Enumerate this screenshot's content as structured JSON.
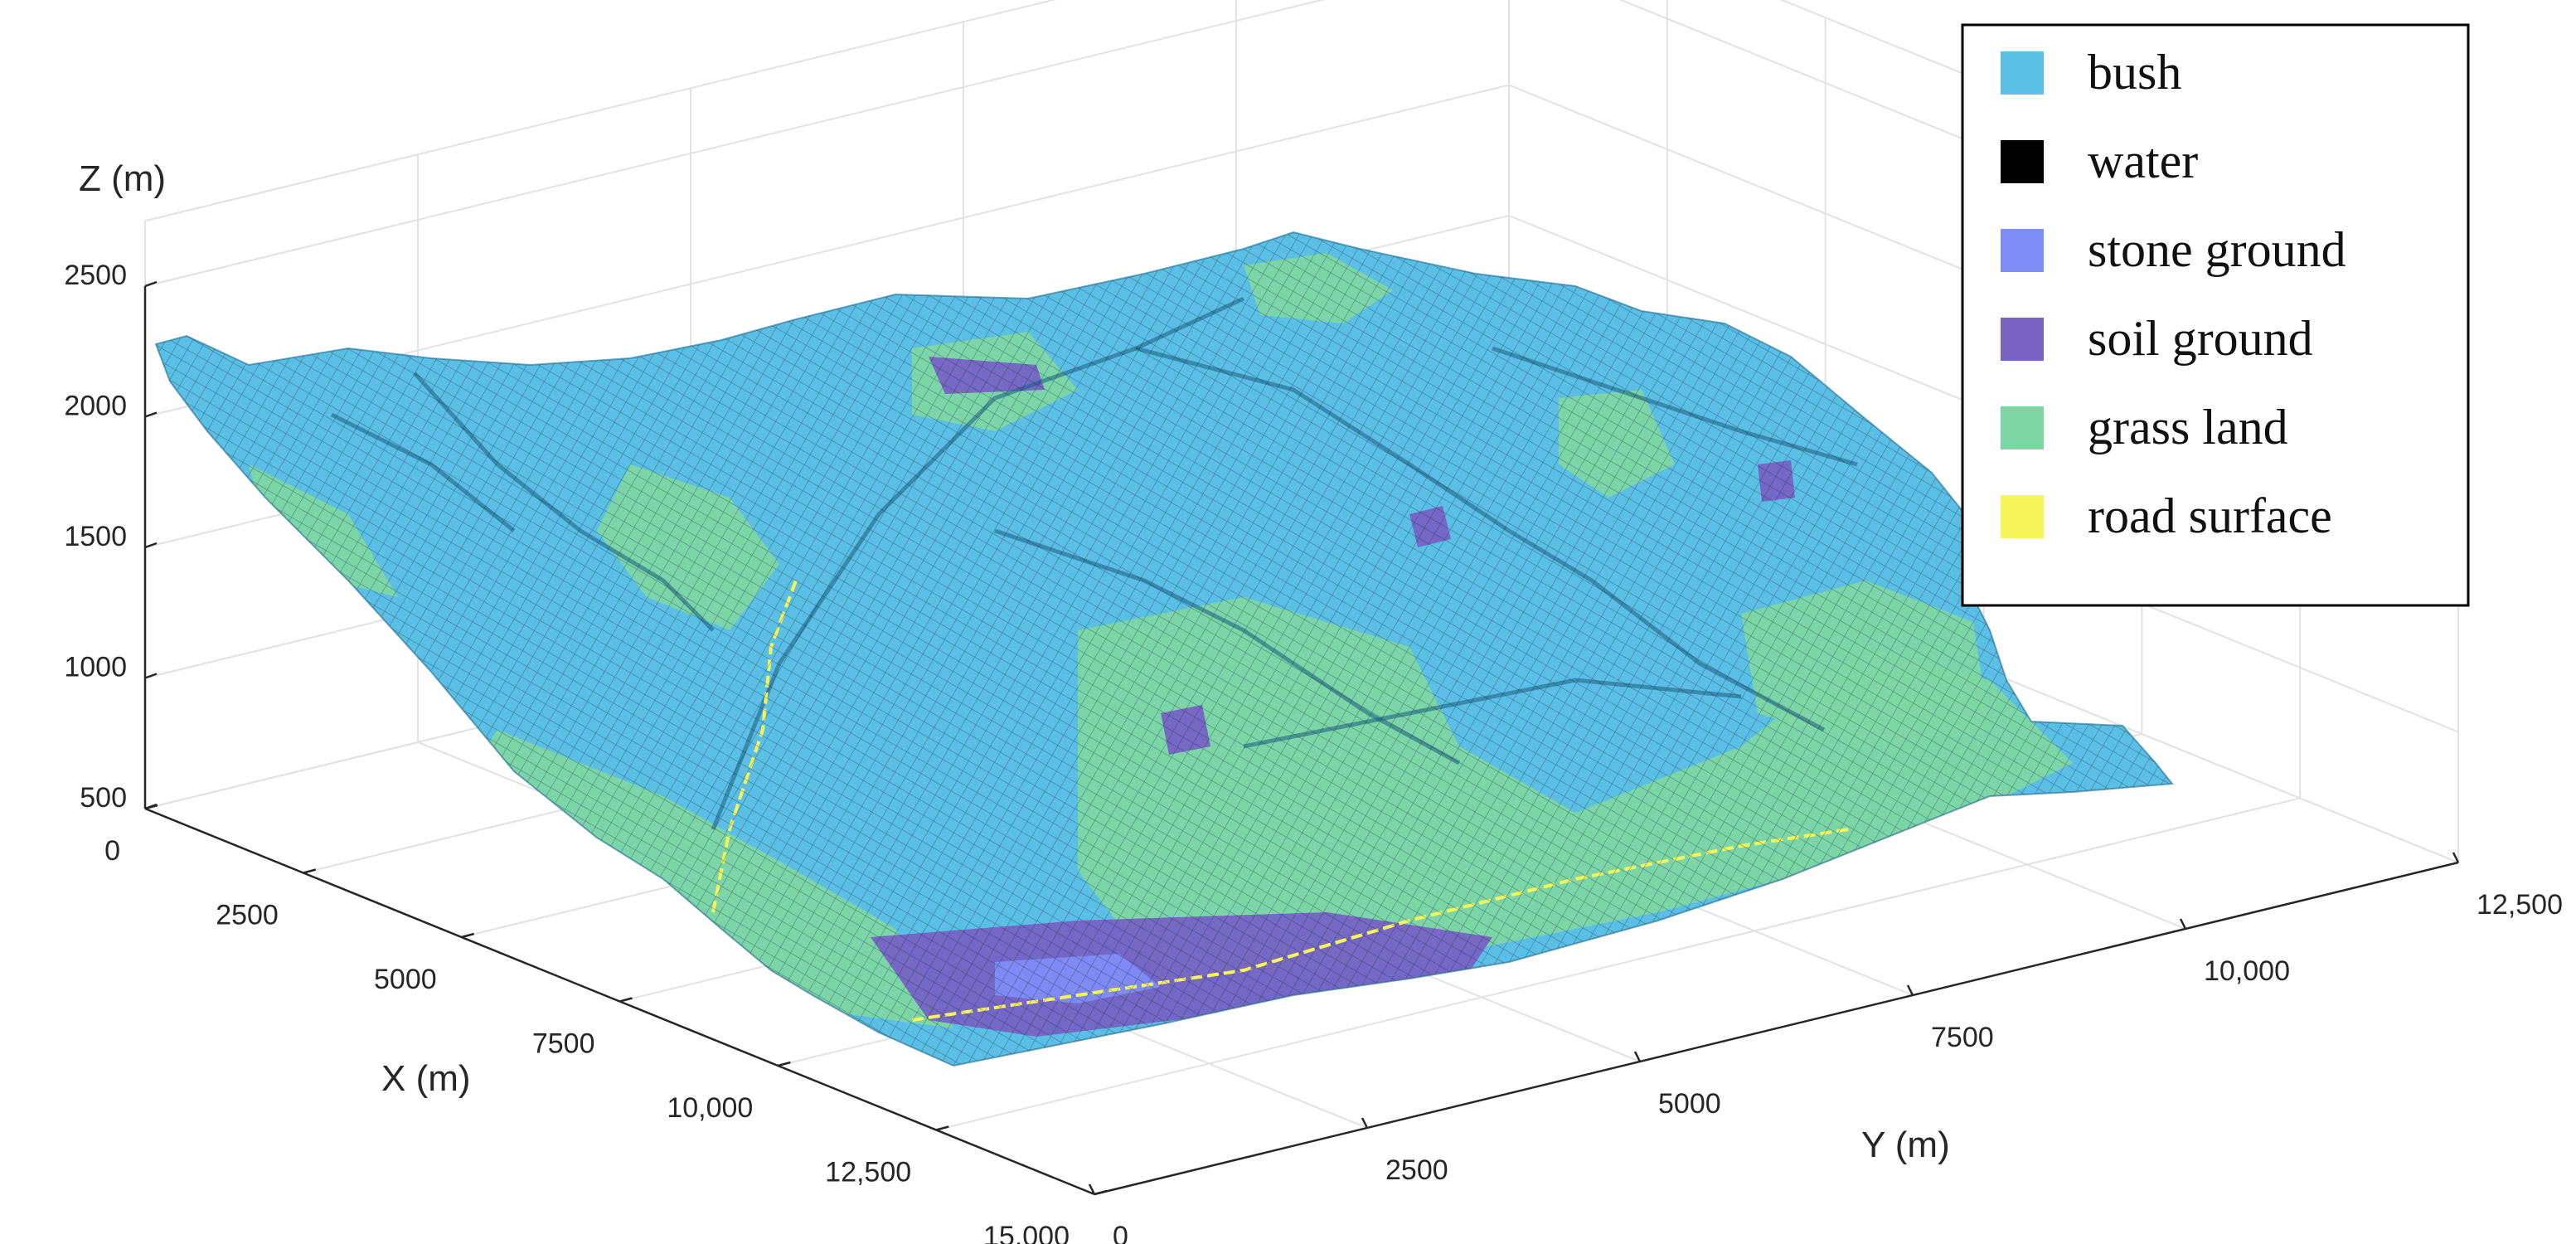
{
  "chart_data": {
    "type": "surface",
    "xlabel": "X (m)",
    "ylabel": "Y (m)",
    "zlabel": "Z (m)",
    "xlim": [
      0,
      15000
    ],
    "ylim": [
      0,
      12500
    ],
    "zlim": [
      500,
      2500
    ],
    "x_ticks": [
      "0",
      "2500",
      "5000",
      "7500",
      "10,000",
      "12,500",
      "15,000"
    ],
    "y_ticks": [
      "0",
      "2500",
      "5000",
      "7500",
      "10,000",
      "12,500"
    ],
    "z_ticks": [
      "500",
      "1000",
      "1500",
      "2000",
      "2500"
    ],
    "grid": true,
    "legend_position": "top-right",
    "legend": [
      {
        "name": "bush",
        "color": "#5bbfe5"
      },
      {
        "name": "water",
        "color": "#000000"
      },
      {
        "name": "stone ground",
        "color": "#7f8cf5"
      },
      {
        "name": "soil ground",
        "color": "#7762c4"
      },
      {
        "name": "grass land",
        "color": "#7dd6a3"
      },
      {
        "name": "road surface",
        "color": "#f5f55a"
      }
    ]
  }
}
